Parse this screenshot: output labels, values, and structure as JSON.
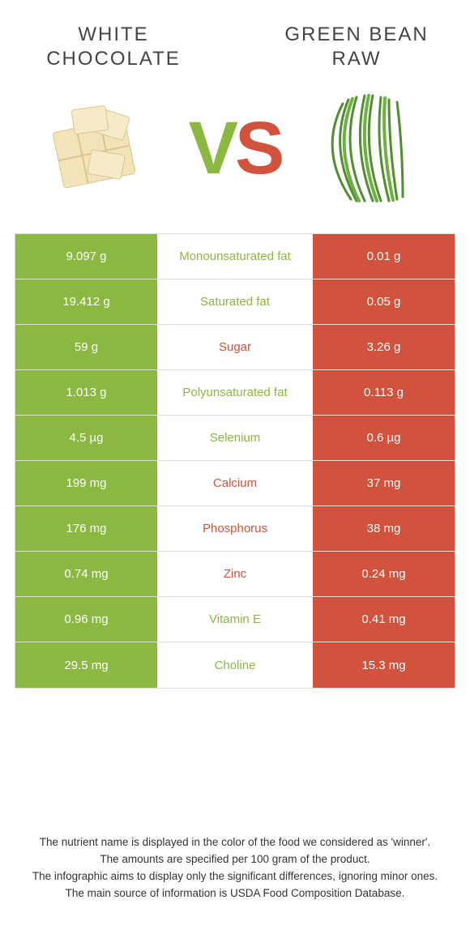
{
  "left": {
    "title": "WHITE CHOCOLATE",
    "color": "#8bb841"
  },
  "right": {
    "title": "GREEN BEAN RAW",
    "color": "#d1533d"
  },
  "vs": {
    "v": "V",
    "s": "S"
  },
  "rows": [
    {
      "left": "9.097 g",
      "label": "Monounsaturated fat",
      "right": "0.01 g",
      "winner": "left"
    },
    {
      "left": "19.412 g",
      "label": "Saturated fat",
      "right": "0.05 g",
      "winner": "left"
    },
    {
      "left": "59 g",
      "label": "Sugar",
      "right": "3.26 g",
      "winner": "right"
    },
    {
      "left": "1.013 g",
      "label": "Polyunsaturated fat",
      "right": "0.113 g",
      "winner": "left"
    },
    {
      "left": "4.5 µg",
      "label": "Selenium",
      "right": "0.6 µg",
      "winner": "left"
    },
    {
      "left": "199 mg",
      "label": "Calcium",
      "right": "37 mg",
      "winner": "right"
    },
    {
      "left": "176 mg",
      "label": "Phosphorus",
      "right": "38 mg",
      "winner": "right"
    },
    {
      "left": "0.74 mg",
      "label": "Zinc",
      "right": "0.24 mg",
      "winner": "right"
    },
    {
      "left": "0.96 mg",
      "label": "Vitamin E",
      "right": "0.41 mg",
      "winner": "left"
    },
    {
      "left": "29.5 mg",
      "label": "Choline",
      "right": "15.3 mg",
      "winner": "left"
    }
  ],
  "footnotes": [
    "The nutrient name is displayed in the color of the food we considered as 'winner'.",
    "The amounts are specified per 100 gram of the product.",
    "The infographic aims to display only the significant differences, ignoring minor ones.",
    "The main source of information is USDA Food Composition Database."
  ]
}
